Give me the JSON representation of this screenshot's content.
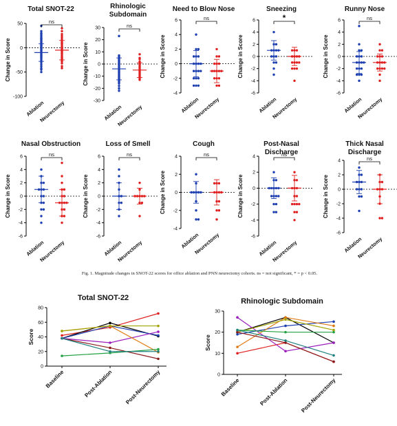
{
  "caption": "Fig. 1. Magnitude changes in SNOT-22 scores for office ablation and PNN neurectomy cohorts. ns = not significant, * = p < 0.05.",
  "group_labels": [
    "Ablation",
    "Neurectomy"
  ],
  "ylabel_change": "Change in Score",
  "colors": {
    "ablation": "#1d3fb0",
    "neurectomy": "#e02020"
  },
  "chart_data": [
    {
      "type": "scatter",
      "title": "Total SNOT-22",
      "ylabel": "Change in Score",
      "categories": [
        "Ablation",
        "Neurectomy"
      ],
      "ylim": [
        -100,
        50
      ],
      "ticks": [
        -100,
        -50,
        0,
        50
      ],
      "significance": "ns",
      "series": [
        {
          "name": "Ablation",
          "mean": -10,
          "sd": 18,
          "values": [
            45,
            34,
            30,
            28,
            25,
            22,
            20,
            18,
            16,
            14,
            12,
            10,
            8,
            6,
            5,
            4,
            2,
            0,
            -2,
            -4,
            -6,
            -8,
            -10,
            -12,
            -14,
            -16,
            -18,
            -20,
            -22,
            -25,
            -28,
            -30,
            -34,
            -38,
            -42,
            -45,
            -50
          ]
        },
        {
          "name": "Neurectomy",
          "mean": -5,
          "sd": 20,
          "values": [
            40,
            34,
            28,
            24,
            20,
            16,
            12,
            10,
            8,
            5,
            2,
            0,
            -2,
            -4,
            -6,
            -8,
            -10,
            -12,
            -15,
            -18,
            -20,
            -22,
            -25,
            -28,
            -32,
            -38,
            -42
          ]
        }
      ]
    },
    {
      "type": "scatter",
      "title": "Rhinologic Subdomain",
      "ylabel": "Change in Score",
      "categories": [
        "Ablation",
        "Neurectomy"
      ],
      "ylim": [
        -30,
        30
      ],
      "ticks": [
        -30,
        -20,
        -10,
        0,
        10,
        20,
        30
      ],
      "significance": "ns",
      "series": [
        {
          "name": "Ablation",
          "mean": -4,
          "sd": 9,
          "values": [
            23,
            7,
            6,
            5,
            4,
            3,
            2,
            1,
            0,
            -1,
            -2,
            -3,
            -4,
            -5,
            -6,
            -7,
            -8,
            -9,
            -10,
            -11,
            -12,
            -13,
            -14,
            -15,
            -16,
            -18,
            -20,
            -22
          ]
        },
        {
          "name": "Neurectomy",
          "mean": -5,
          "sd": 6,
          "values": [
            8,
            5,
            4,
            2,
            1,
            0,
            -1,
            -2,
            -3,
            -4,
            -5,
            -6,
            -7,
            -8,
            -9,
            -10,
            -11,
            -12,
            -13
          ]
        }
      ]
    },
    {
      "type": "scatter",
      "title": "Need to Blow Nose",
      "ylabel": "Change in Score",
      "categories": [
        "Ablation",
        "Neurectomy"
      ],
      "ylim": [
        -4,
        6
      ],
      "ticks": [
        -4,
        -2,
        0,
        2,
        4,
        6
      ],
      "significance": "ns",
      "series": [
        {
          "name": "Ablation",
          "mean": 0,
          "sd": 1.8,
          "values": [
            4,
            2,
            2,
            1,
            1,
            1,
            0,
            0,
            0,
            0,
            -1,
            -1,
            -1,
            -1,
            -2,
            -2,
            -2,
            -3,
            -3,
            -3
          ]
        },
        {
          "name": "Neurectomy",
          "mean": -1,
          "sd": 1.6,
          "values": [
            2,
            1,
            1,
            0,
            0,
            0,
            -1,
            -1,
            -1,
            -1,
            -1,
            -2,
            -2,
            -2,
            -3,
            -3
          ]
        }
      ]
    },
    {
      "type": "scatter",
      "title": "Sneezing",
      "ylabel": "Change in Score",
      "categories": [
        "Ablation",
        "Neurectomy"
      ],
      "ylim": [
        -6,
        6
      ],
      "ticks": [
        -6,
        -4,
        -2,
        0,
        2,
        4,
        6
      ],
      "significance": "*",
      "series": [
        {
          "name": "Ablation",
          "mean": 1,
          "sd": 1.6,
          "values": [
            4,
            2,
            2,
            1,
            1,
            1,
            1,
            0,
            0,
            0,
            -1,
            -1,
            -2,
            -3
          ]
        },
        {
          "name": "Neurectomy",
          "mean": 0,
          "sd": 1.5,
          "values": [
            1,
            1,
            1,
            0,
            0,
            0,
            0,
            -1,
            -1,
            -1,
            -1,
            -2,
            -2,
            -2,
            -4
          ]
        }
      ]
    },
    {
      "type": "scatter",
      "title": "Runny Nose",
      "ylabel": "Change in Score",
      "categories": [
        "Ablation",
        "Neurectomy"
      ],
      "ylim": [
        -6,
        6
      ],
      "ticks": [
        -6,
        -4,
        -2,
        0,
        2,
        4,
        6
      ],
      "significance": "ns",
      "series": [
        {
          "name": "Ablation",
          "mean": -1,
          "sd": 1.8,
          "values": [
            5,
            2,
            1,
            1,
            0,
            0,
            0,
            -1,
            -1,
            -1,
            -1,
            -2,
            -2,
            -2,
            -3,
            -3,
            -3,
            -4
          ]
        },
        {
          "name": "Neurectomy",
          "mean": -1,
          "sd": 1.4,
          "values": [
            2,
            1,
            1,
            0,
            0,
            0,
            -1,
            -1,
            -1,
            -1,
            -2,
            -2,
            -2,
            -2,
            -3,
            -4
          ]
        }
      ]
    },
    {
      "type": "scatter",
      "title": "Nasal Obstruction",
      "ylabel": "Change in Score",
      "categories": [
        "Ablation",
        "Neurectomy"
      ],
      "ylim": [
        -6,
        6
      ],
      "ticks": [
        -6,
        -4,
        -2,
        0,
        2,
        4,
        6
      ],
      "significance": "ns",
      "series": [
        {
          "name": "Ablation",
          "mean": 1,
          "sd": 2,
          "values": [
            4,
            3,
            2,
            2,
            1,
            1,
            1,
            0,
            0,
            -1,
            -1,
            -2,
            -2,
            -3,
            -4
          ]
        },
        {
          "name": "Neurectomy",
          "mean": -1,
          "sd": 2,
          "values": [
            5,
            3,
            2,
            1,
            1,
            0,
            0,
            -1,
            -1,
            -1,
            -1,
            -2,
            -2,
            -3,
            -3,
            -4
          ]
        }
      ]
    },
    {
      "type": "scatter",
      "title": "Loss of Smell",
      "ylabel": "Change in Score",
      "categories": [
        "Ablation",
        "Neurectomy"
      ],
      "ylim": [
        -6,
        6
      ],
      "ticks": [
        -6,
        -4,
        -2,
        0,
        2,
        4,
        6
      ],
      "significance": "ns",
      "series": [
        {
          "name": "Ablation",
          "mean": 0,
          "sd": 2,
          "values": [
            4,
            3,
            2,
            1,
            0,
            0,
            -1,
            -1,
            -2,
            -3
          ]
        },
        {
          "name": "Neurectomy",
          "mean": 0,
          "sd": 1.2,
          "values": [
            2,
            1,
            0,
            0,
            0,
            0,
            0,
            -1,
            -1,
            -3
          ]
        }
      ]
    },
    {
      "type": "scatter",
      "title": "Cough",
      "ylabel": "Change in Score",
      "categories": [
        "Ablation",
        "Neurectomy"
      ],
      "ylim": [
        -4,
        4
      ],
      "ticks": [
        -4,
        -2,
        0,
        2,
        4
      ],
      "significance": "ns",
      "series": [
        {
          "name": "Ablation",
          "mean": 0,
          "sd": 1.2,
          "values": [
            2,
            1,
            0,
            0,
            0,
            0,
            0,
            -1,
            -2,
            -3,
            -3
          ]
        },
        {
          "name": "Neurectomy",
          "mean": 0,
          "sd": 1.4,
          "values": [
            1,
            1,
            1,
            0,
            0,
            0,
            0,
            -1,
            -1,
            -2,
            -2,
            -3
          ]
        }
      ]
    },
    {
      "type": "scatter",
      "title": "Post-Nasal Discharge",
      "ylabel": "Change in Score",
      "categories": [
        "Ablation",
        "Neurectomy"
      ],
      "ylim": [
        -6,
        4
      ],
      "ticks": [
        -6,
        -4,
        -2,
        0,
        2,
        4
      ],
      "significance": "ns",
      "series": [
        {
          "name": "Ablation",
          "mean": 0,
          "sd": 1.3,
          "values": [
            2,
            1,
            1,
            0,
            0,
            0,
            0,
            0,
            -1,
            -1,
            -1,
            -1,
            -2,
            -2,
            -3,
            -3
          ]
        },
        {
          "name": "Neurectomy",
          "mean": 0,
          "sd": 1.6,
          "values": [
            2,
            1,
            1,
            0,
            0,
            0,
            -1,
            -1,
            -2,
            -2,
            -2,
            -2,
            -3,
            -3,
            -4
          ]
        }
      ]
    },
    {
      "type": "scatter",
      "title": "Thick Nasal Discharge",
      "ylabel": "Change in Score",
      "categories": [
        "Ablation",
        "Neurectomy"
      ],
      "ylim": [
        -6,
        4
      ],
      "ticks": [
        -6,
        -4,
        -2,
        0,
        2,
        4
      ],
      "significance": "ns",
      "series": [
        {
          "name": "Ablation",
          "mean": 1,
          "sd": 1.6,
          "values": [
            3,
            2,
            2,
            1,
            1,
            1,
            0,
            0,
            0,
            -1,
            -1,
            -3
          ]
        },
        {
          "name": "Neurectomy",
          "mean": 0,
          "sd": 2,
          "values": [
            2,
            1,
            1,
            0,
            0,
            0,
            -1,
            -2,
            -4,
            -4
          ]
        }
      ]
    },
    {
      "type": "line",
      "title": "Total SNOT-22",
      "ylabel": "Score",
      "categories": [
        "Baseline",
        "Post-Ablation",
        "Post-Neurectomy"
      ],
      "ylim": [
        0,
        80
      ],
      "ticks": [
        0,
        20,
        40,
        60,
        80
      ],
      "series": [
        {
          "color": "#e02020",
          "values": [
            42,
            53,
            72
          ]
        },
        {
          "color": "#000000",
          "values": [
            38,
            59,
            41
          ]
        },
        {
          "color": "#1d3fb0",
          "values": [
            38,
            55,
            42
          ]
        },
        {
          "color": "#9b1dbd",
          "values": [
            38,
            32,
            47
          ]
        },
        {
          "color": "#e07a10",
          "values": [
            48,
            55,
            19
          ]
        },
        {
          "color": "#a3a300",
          "values": [
            48,
            55,
            55
          ]
        },
        {
          "color": "#8b1a1a",
          "values": [
            38,
            25,
            10
          ]
        },
        {
          "color": "#20a040",
          "values": [
            14,
            18,
            23
          ]
        },
        {
          "color": "#208080",
          "values": [
            38,
            20,
            20
          ]
        }
      ]
    },
    {
      "type": "line",
      "title": "Rhinologic Subdomain",
      "ylabel": "Score",
      "categories": [
        "Baseline",
        "Post-Ablation",
        "Post-Neurectomy"
      ],
      "ylim": [
        0,
        30
      ],
      "ticks": [
        0,
        10,
        20,
        30
      ],
      "series": [
        {
          "color": "#e02020",
          "values": [
            10,
            15,
            6
          ]
        },
        {
          "color": "#000000",
          "values": [
            20,
            27,
            15
          ]
        },
        {
          "color": "#1d3fb0",
          "values": [
            19,
            23,
            25
          ]
        },
        {
          "color": "#9b1dbd",
          "values": [
            27,
            11,
            15
          ]
        },
        {
          "color": "#e07a10",
          "values": [
            13,
            27,
            23
          ]
        },
        {
          "color": "#a3a300",
          "values": [
            20,
            26,
            21
          ]
        },
        {
          "color": "#8b1a1a",
          "values": [
            20,
            15,
            6
          ]
        },
        {
          "color": "#20a040",
          "values": [
            21,
            20,
            20
          ]
        },
        {
          "color": "#208080",
          "values": [
            21,
            16,
            9
          ]
        }
      ]
    }
  ]
}
